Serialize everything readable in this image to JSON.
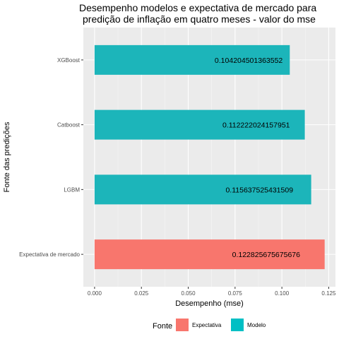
{
  "chart_data": {
    "type": "bar",
    "orientation": "horizontal",
    "title_lines": [
      "Desempenho modelos e expectativa de mercado para",
      "predição de inflação em quatro meses - valor do mse"
    ],
    "xlabel": "Desempenho (mse)",
    "ylabel": "Fonte das predições",
    "xlim": [
      -0.006,
      0.1286
    ],
    "xticks": [
      0.0,
      0.025,
      0.05,
      0.075,
      0.1,
      0.125
    ],
    "xtick_labels": [
      "0.000",
      "0.025",
      "0.050",
      "0.075",
      "0.100",
      "0.125"
    ],
    "categories": [
      "XGBoost",
      "Catboost",
      "LGBM",
      "Expectativa de mercado"
    ],
    "values": [
      0.104204501363552,
      0.112222024157951,
      0.115637525431509,
      0.122825675675676
    ],
    "value_labels": [
      "0.104204501363552",
      "0.112222024157951",
      "0.115637525431509",
      "0.122825675675676"
    ],
    "groups": [
      "Modelo",
      "Modelo",
      "Modelo",
      "Expectativa"
    ],
    "legend": {
      "title": "Fonte",
      "position": "bottom",
      "entries": [
        {
          "label": "Expectativa",
          "color": "#F8766D"
        },
        {
          "label": "Modelo",
          "color": "#00BFC4"
        }
      ]
    },
    "colors": {
      "Expectativa": "#F8766D",
      "Modelo": "#1CB5BA"
    },
    "grid": true,
    "panel_background": "#EBEBEB"
  }
}
